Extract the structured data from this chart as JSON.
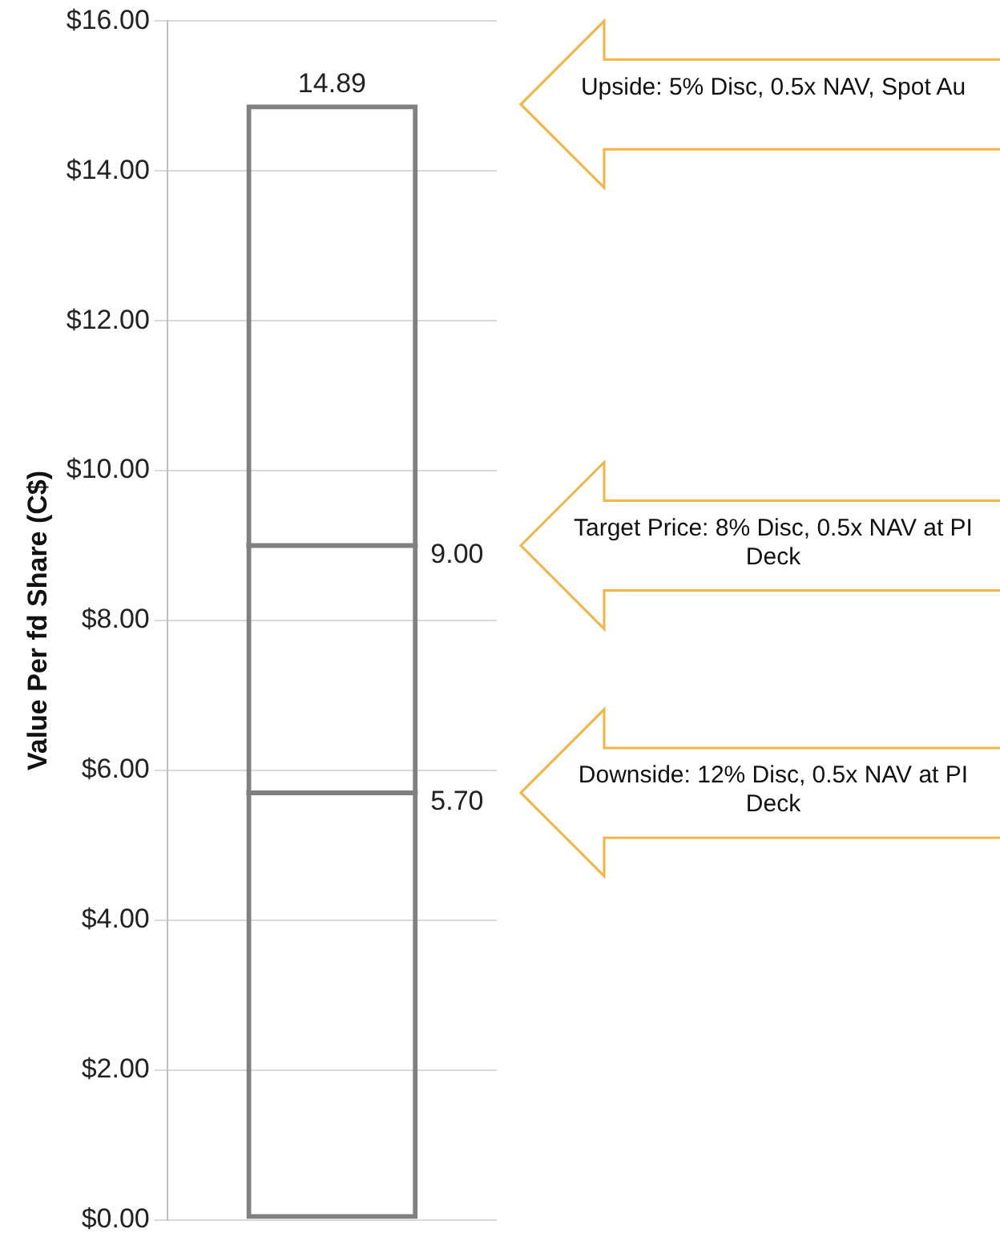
{
  "chart_data": {
    "type": "bar",
    "ylabel": "Value Per fd Share (C$)",
    "categories": [
      null
    ],
    "series": [
      {
        "color": "#808080",
        "values": [
          14.89
        ]
      }
    ],
    "ref_lines": [
      {
        "axis": "y",
        "value": 9.0,
        "label": "9.00",
        "color": "#808080"
      },
      {
        "axis": "y",
        "value": 5.7,
        "label": "5.70",
        "color": "#808080"
      }
    ],
    "data_labels": true,
    "ylim": [
      0,
      16
    ],
    "yticks": [
      {
        "value": 0,
        "label": "$0.00"
      },
      {
        "value": 2,
        "label": "$2.00"
      },
      {
        "value": 4,
        "label": "$4.00"
      },
      {
        "value": 6,
        "label": "$6.00"
      },
      {
        "value": 8,
        "label": "$8.00"
      },
      {
        "value": 10,
        "label": "$10.00"
      },
      {
        "value": 12,
        "label": "$12.00"
      },
      {
        "value": 14,
        "label": "$14.00"
      },
      {
        "value": 16,
        "label": "$16.00"
      }
    ],
    "grid": "y",
    "tick_labels": "y",
    "legend": false,
    "annotations": [
      "Upside: 5% Disc, 0.5x NAV, Spot Au",
      "Target Price: 8% Disc, 0.5x NAV at PI Deck",
      "Downside: 12% Disc, 0.5x NAV at PI Deck"
    ]
  }
}
